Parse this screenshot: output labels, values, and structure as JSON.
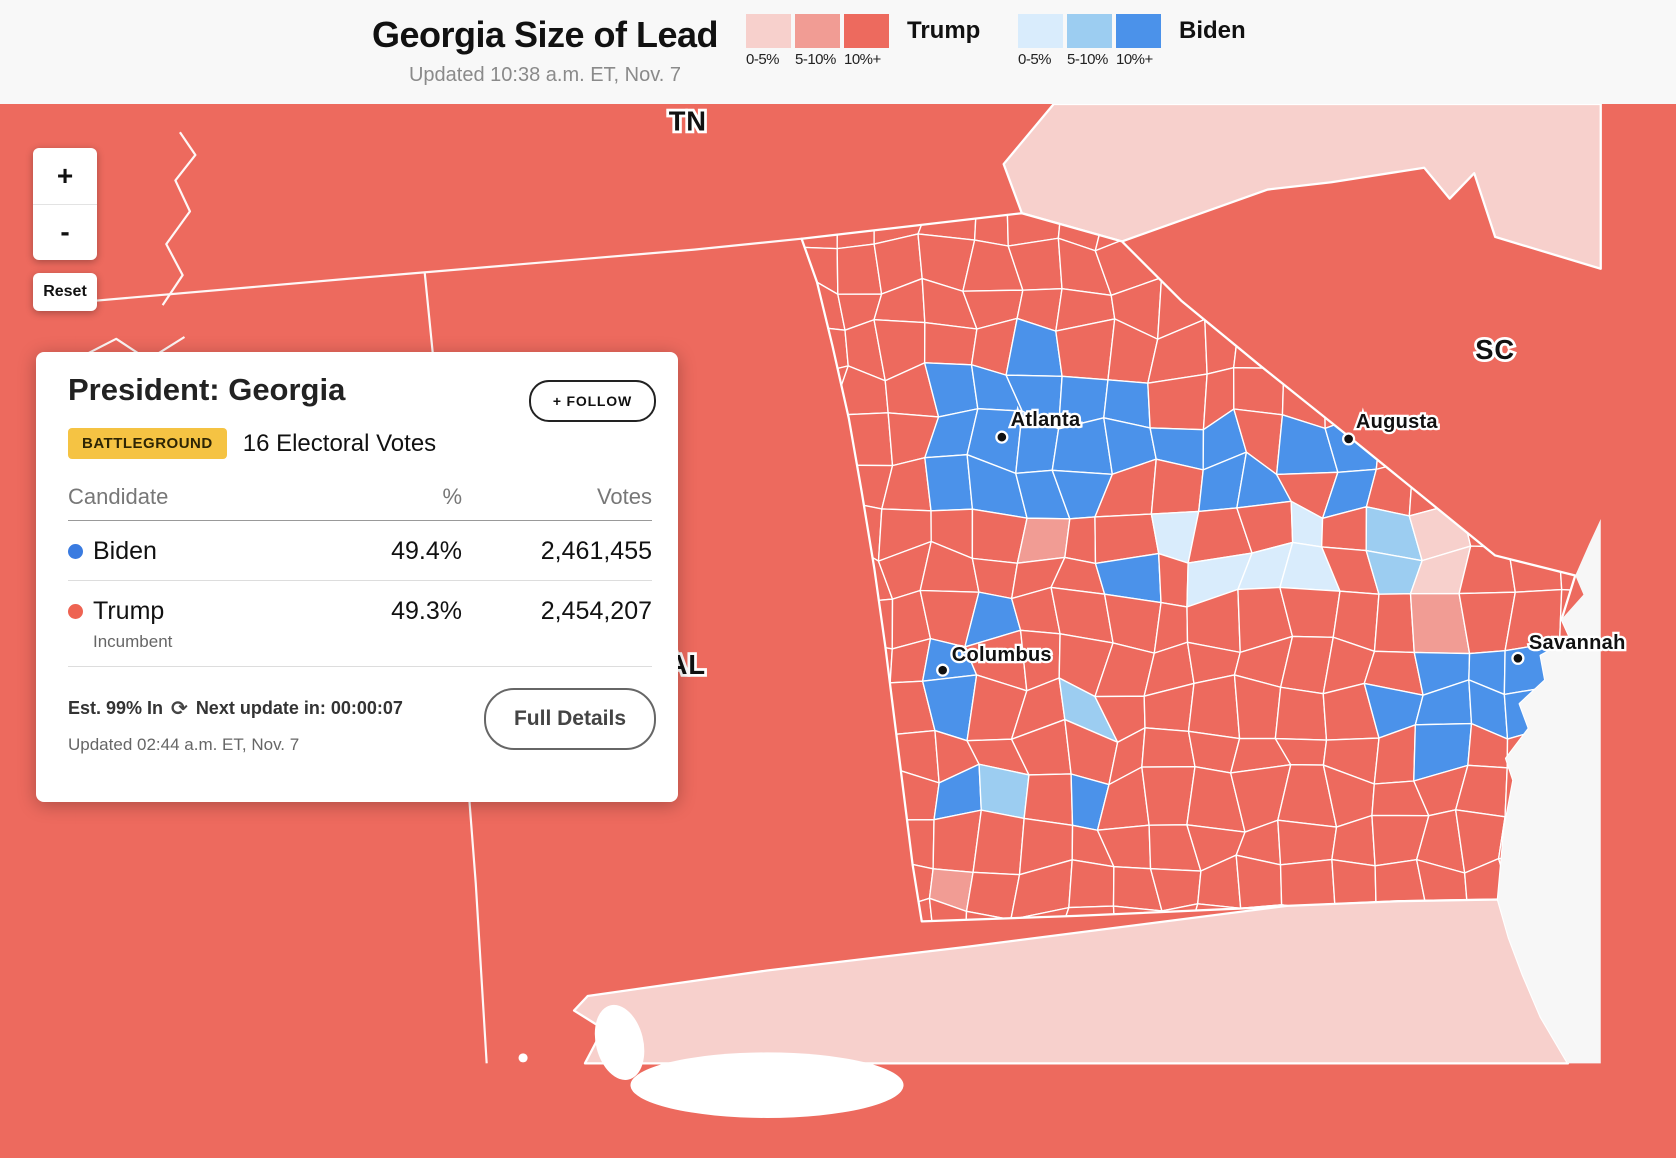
{
  "header": {
    "title": "Georgia Size of Lead",
    "updated": "Updated 10:38 a.m. ET, Nov. 7",
    "legend": {
      "buckets": [
        "0-5%",
        "5-10%",
        "10%+"
      ],
      "trump": {
        "label": "Trump",
        "colors": [
          "#f7d0cc",
          "#f19c94",
          "#ed6a5e"
        ]
      },
      "biden": {
        "label": "Biden",
        "colors": [
          "#d9ecfc",
          "#9ccdf1",
          "#4b92ea"
        ]
      }
    }
  },
  "controls": {
    "zoom_in": "+",
    "zoom_out": "-",
    "reset": "Reset"
  },
  "card": {
    "title": "President: Georgia",
    "follow": "+ FOLLOW",
    "badge": "BATTLEGROUND",
    "electoral": "16 Electoral Votes",
    "columns": {
      "candidate": "Candidate",
      "pct": "%",
      "votes": "Votes"
    },
    "rows": [
      {
        "name": "Biden",
        "pct": "49.4%",
        "votes": "2,461,455",
        "dot": "#3a7be0"
      },
      {
        "name": "Trump",
        "note": "Incumbent",
        "pct": "49.3%",
        "votes": "2,454,207",
        "dot": "#ee6352"
      }
    ],
    "est": "Est. 99% In",
    "refresh_icon": "⟳",
    "next": "Next update in: 00:00:07",
    "updated": "Updated 02:44 a.m. ET, Nov. 7",
    "details": "Full Details"
  },
  "map": {
    "colors": {
      "base": "#ed6a5e",
      "light_band": "#f7d0cc",
      "ocean": "#f7f7f7",
      "border": "#ffffff"
    },
    "states": {
      "tn": "TN",
      "sc": "SC",
      "al": "AL"
    },
    "cities": {
      "atlanta": "Atlanta",
      "augusta": "Augusta",
      "columbus": "Columbus",
      "savannah": "Savannah"
    }
  }
}
